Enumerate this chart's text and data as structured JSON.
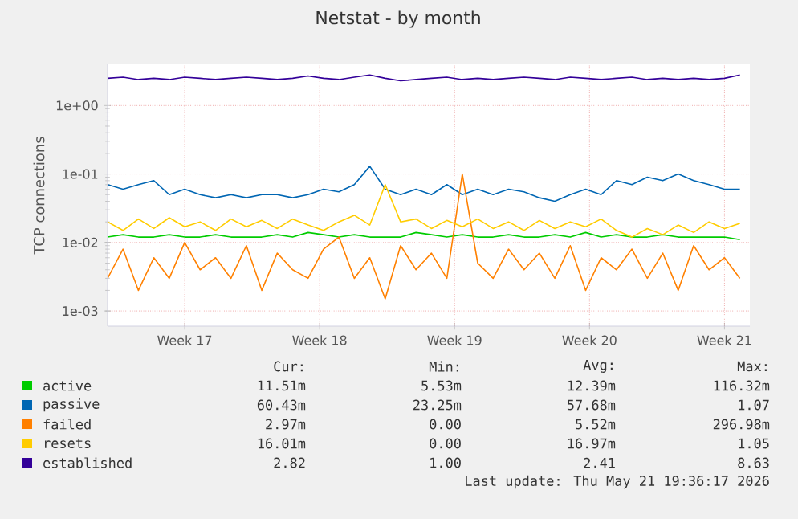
{
  "chart_data": {
    "type": "line",
    "title": "Netstat - by month",
    "ylabel": "TCP connections",
    "log": true,
    "grid": true,
    "legend": "bottom",
    "x": [
      "2026-04-18T12:00",
      "2026-04-19T07:12",
      "2026-04-20T02:24",
      "2026-04-20T21:36",
      "2026-04-21T16:48",
      "2026-04-22T12:00",
      "2026-04-23T07:12",
      "2026-04-24T02:24",
      "2026-04-24T21:36",
      "2026-04-25T16:48",
      "2026-04-26T12:00",
      "2026-04-27T07:12",
      "2026-04-28T02:24",
      "2026-04-28T21:36",
      "2026-04-29T16:48",
      "2026-04-30T12:00",
      "2026-05-01T07:12",
      "2026-05-02T02:24",
      "2026-05-02T21:36",
      "2026-05-03T16:48",
      "2026-05-04T12:00",
      "2026-05-05T07:12",
      "2026-05-06T02:24",
      "2026-05-06T21:36",
      "2026-05-07T16:48",
      "2026-05-08T12:00",
      "2026-05-09T07:12",
      "2026-05-10T02:24",
      "2026-05-10T21:36",
      "2026-05-11T16:48",
      "2026-05-12T12:00",
      "2026-05-13T07:12",
      "2026-05-14T02:24",
      "2026-05-14T21:36",
      "2026-05-15T16:48",
      "2026-05-16T12:00",
      "2026-05-17T07:12",
      "2026-05-18T02:24",
      "2026-05-18T21:36",
      "2026-05-19T16:48",
      "2026-05-20T12:00",
      "2026-05-21T07:12"
    ],
    "xlim": [
      "2026-04-18T12:00",
      "2026-05-21T19:36"
    ],
    "xticks": [
      {
        "value": "2026-04-22T12:00",
        "label": "Week 17"
      },
      {
        "value": "2026-04-29T12:00",
        "label": "Week 18"
      },
      {
        "value": "2026-05-06T12:00",
        "label": "Week 19"
      },
      {
        "value": "2026-05-13T12:00",
        "label": "Week 20"
      },
      {
        "value": "2026-05-20T12:00",
        "label": "Week 21"
      }
    ],
    "ylim": [
      0.0006,
      4
    ],
    "yticks": [
      {
        "value": 0.001,
        "label": "1e-03"
      },
      {
        "value": 0.01,
        "label": "1e-02"
      },
      {
        "value": 0.1,
        "label": "1e-01"
      },
      {
        "value": 1,
        "label": "1e+00"
      }
    ],
    "series": [
      {
        "name": "active",
        "color": "#00cc00",
        "values": [
          0.012,
          0.013,
          0.012,
          0.012,
          0.013,
          0.012,
          0.012,
          0.013,
          0.012,
          0.012,
          0.012,
          0.013,
          0.012,
          0.014,
          0.013,
          0.012,
          0.013,
          0.012,
          0.012,
          0.012,
          0.014,
          0.013,
          0.012,
          0.013,
          0.012,
          0.012,
          0.013,
          0.012,
          0.012,
          0.013,
          0.012,
          0.014,
          0.012,
          0.013,
          0.012,
          0.012,
          0.013,
          0.012,
          0.012,
          0.012,
          0.012,
          0.011
        ]
      },
      {
        "name": "passive",
        "color": "#0066b3",
        "values": [
          0.07,
          0.06,
          0.07,
          0.08,
          0.05,
          0.06,
          0.05,
          0.045,
          0.05,
          0.045,
          0.05,
          0.05,
          0.045,
          0.05,
          0.06,
          0.055,
          0.07,
          0.13,
          0.06,
          0.05,
          0.06,
          0.05,
          0.07,
          0.05,
          0.06,
          0.05,
          0.06,
          0.055,
          0.045,
          0.04,
          0.05,
          0.06,
          0.05,
          0.08,
          0.07,
          0.09,
          0.08,
          0.1,
          0.08,
          0.07,
          0.06,
          0.06
        ]
      },
      {
        "name": "failed",
        "color": "#ff8000",
        "values": [
          0.003,
          0.008,
          0.002,
          0.006,
          0.003,
          0.01,
          0.004,
          0.006,
          0.003,
          0.009,
          0.002,
          0.007,
          0.004,
          0.003,
          0.008,
          0.012,
          0.003,
          0.006,
          0.0015,
          0.009,
          0.004,
          0.007,
          0.003,
          0.1,
          0.005,
          0.003,
          0.008,
          0.004,
          0.007,
          0.003,
          0.009,
          0.002,
          0.006,
          0.004,
          0.008,
          0.003,
          0.007,
          0.002,
          0.009,
          0.004,
          0.006,
          0.003
        ]
      },
      {
        "name": "resets",
        "color": "#ffcc00",
        "values": [
          0.02,
          0.015,
          0.022,
          0.016,
          0.023,
          0.017,
          0.02,
          0.015,
          0.022,
          0.017,
          0.021,
          0.016,
          0.022,
          0.018,
          0.015,
          0.02,
          0.025,
          0.018,
          0.07,
          0.02,
          0.022,
          0.016,
          0.021,
          0.017,
          0.022,
          0.016,
          0.02,
          0.015,
          0.021,
          0.016,
          0.02,
          0.017,
          0.022,
          0.015,
          0.012,
          0.016,
          0.013,
          0.018,
          0.014,
          0.02,
          0.016,
          0.019
        ]
      },
      {
        "name": "established",
        "color": "#330099",
        "values": [
          2.5,
          2.6,
          2.4,
          2.5,
          2.4,
          2.6,
          2.5,
          2.4,
          2.5,
          2.6,
          2.5,
          2.4,
          2.5,
          2.7,
          2.5,
          2.4,
          2.6,
          2.8,
          2.5,
          2.3,
          2.4,
          2.5,
          2.6,
          2.4,
          2.5,
          2.4,
          2.5,
          2.6,
          2.5,
          2.4,
          2.6,
          2.5,
          2.4,
          2.5,
          2.6,
          2.4,
          2.5,
          2.4,
          2.5,
          2.4,
          2.5,
          2.8
        ]
      }
    ],
    "annotations": [
      "Cur:",
      "Min:",
      "Avg:",
      "Max:",
      "11.51m",
      "5.53m",
      "12.39m",
      "116.32m",
      "60.43m",
      "23.25m",
      "57.68m",
      "1.07",
      "2.97m",
      "0.00",
      "5.52m",
      "296.98m",
      "16.01m",
      "0.00",
      "16.97m",
      "1.05",
      "2.82",
      "1.00",
      "2.41",
      "8.63",
      "Last update: Thu May 21 19:36:17 2026"
    ]
  }
}
